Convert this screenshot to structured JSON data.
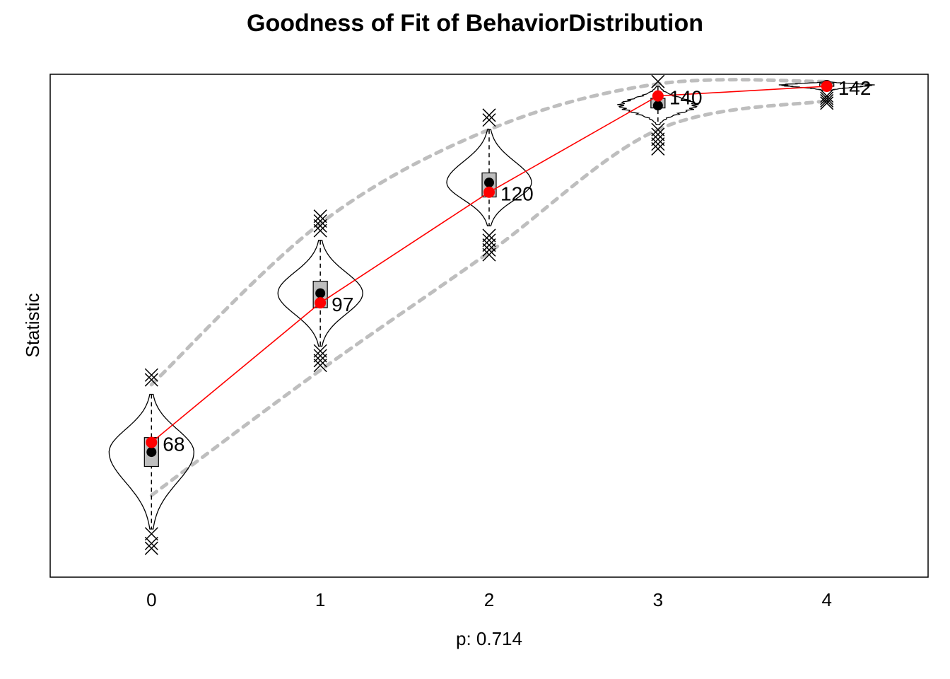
{
  "chart_data": {
    "type": "violin",
    "title": "Goodness of Fit of BehaviorDistribution",
    "xlabel": "p: 0.714",
    "ylabel": "Statistic",
    "x": [
      0,
      1,
      2,
      3,
      4
    ],
    "xlim": [
      -0.6,
      4.6
    ],
    "ylim": [
      40,
      144.5
    ],
    "observed": {
      "values": [
        68,
        97,
        120,
        140,
        142
      ],
      "labels": [
        "68",
        "97",
        "120",
        "140",
        "142"
      ],
      "color": "#ff0000"
    },
    "simulated": [
      {
        "x": 0,
        "median": 66,
        "q1": 63,
        "q3": 69,
        "whisker_low": 50,
        "whisker_high": 78,
        "outliers": [
          46,
          47,
          49,
          81,
          82
        ]
      },
      {
        "x": 1,
        "median": 99,
        "q1": 96,
        "q3": 101.5,
        "whisker_low": 88,
        "whisker_high": 110,
        "outliers": [
          84,
          85,
          86,
          87,
          112,
          113,
          114,
          115
        ]
      },
      {
        "x": 2,
        "median": 122,
        "q1": 119,
        "q3": 124,
        "whisker_low": 113,
        "whisker_high": 133,
        "outliers": [
          107,
          108,
          109,
          110,
          111,
          135,
          136
        ]
      },
      {
        "x": 3,
        "median": 138,
        "q1": 137.5,
        "q3": 139.5,
        "whisker_low": 134,
        "whisker_high": 142,
        "outliers": [
          129,
          130,
          131,
          132,
          133,
          143
        ]
      },
      {
        "x": 4,
        "median": 142.3,
        "q1": 142,
        "q3": 142.6,
        "whisker_low": 141,
        "whisker_high": 143,
        "outliers": [
          138.5,
          139,
          139.5,
          140
        ]
      }
    ],
    "interval": {
      "lower": [
        57,
        83,
        107.5,
        133,
        139
      ],
      "upper": [
        80,
        113.5,
        133,
        142.5,
        143
      ],
      "color": "#bebebe"
    },
    "grid": false
  }
}
